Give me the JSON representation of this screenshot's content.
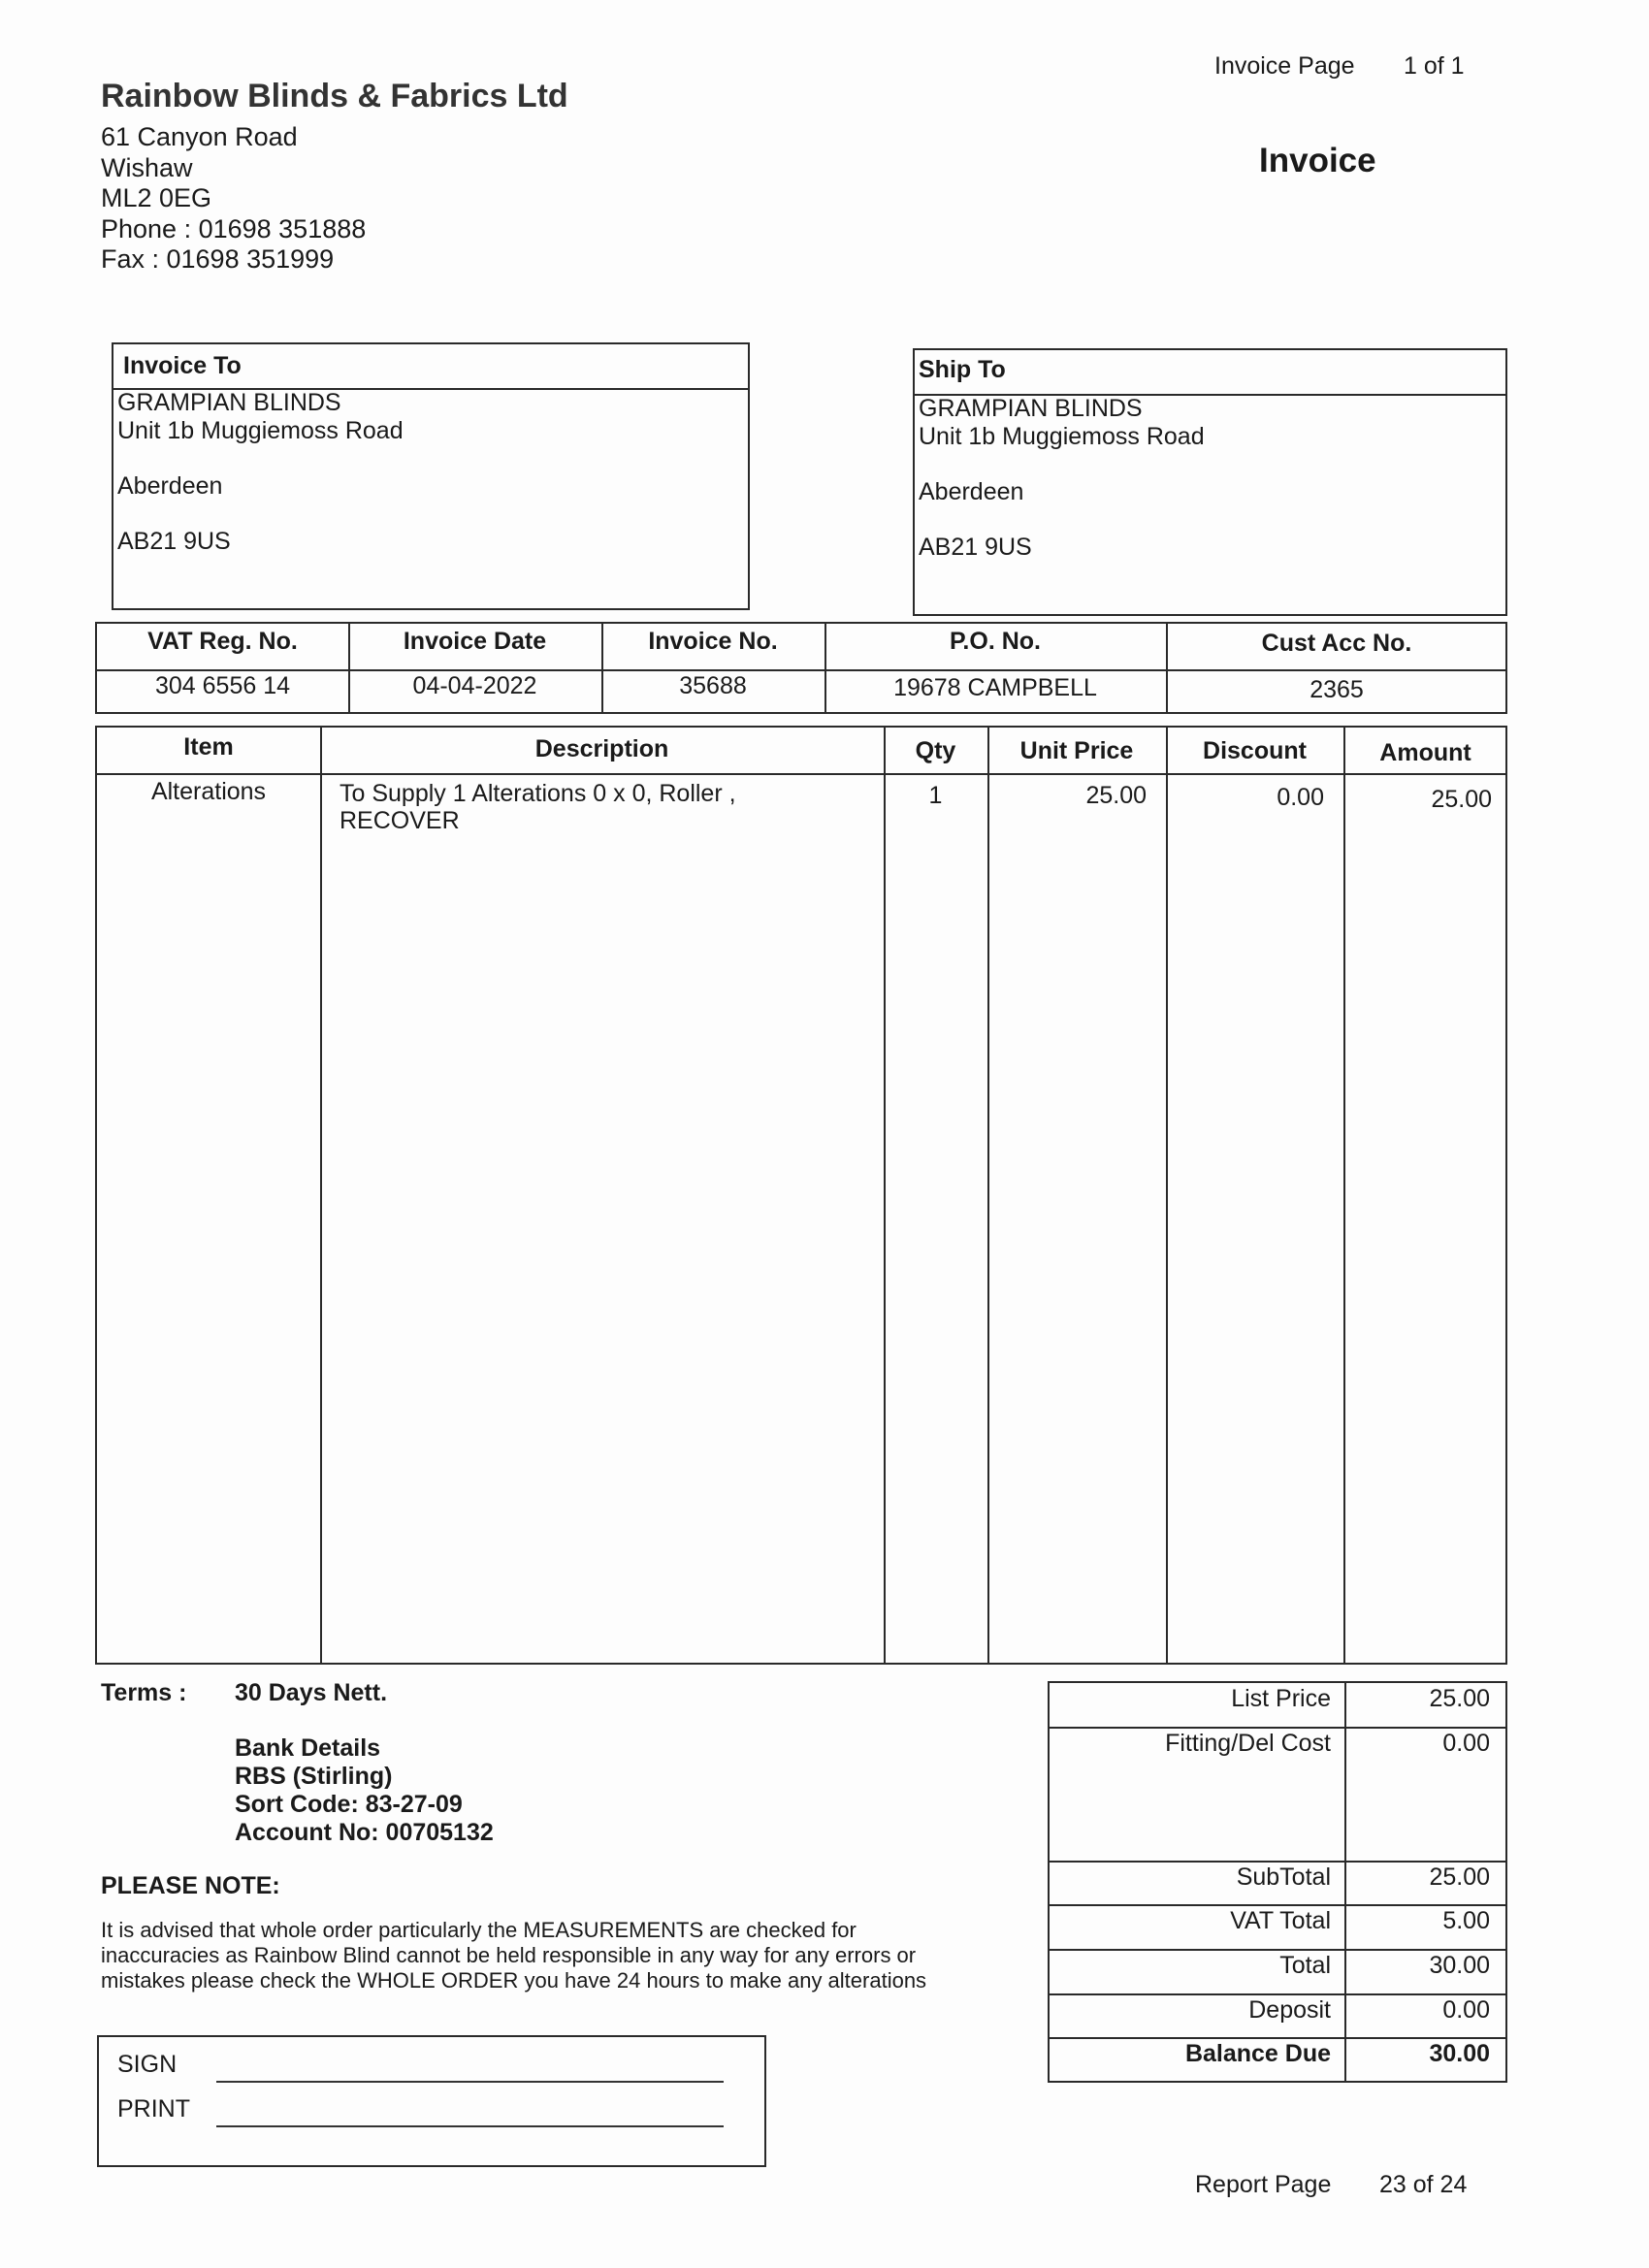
{
  "header": {
    "page_label": "Invoice  Page",
    "page_value": "1 of 1",
    "doc_title": "Invoice"
  },
  "company": {
    "name": "Rainbow Blinds & Fabrics Ltd",
    "address": [
      "61 Canyon Road",
      "Wishaw",
      "ML2 0EG"
    ],
    "phone": "Phone : 01698 351888",
    "fax": "Fax : 01698 351999"
  },
  "invoice_to": {
    "title": "Invoice To",
    "lines": [
      "GRAMPIAN BLINDS",
      "Unit 1b Muggiemoss Road",
      "",
      "Aberdeen",
      "",
      "AB21 9US"
    ]
  },
  "ship_to": {
    "title": "Ship To",
    "lines": [
      "GRAMPIAN BLINDS",
      "Unit 1b Muggiemoss Road",
      "",
      "Aberdeen",
      "",
      "AB21 9US"
    ]
  },
  "info": {
    "headers": [
      "VAT Reg. No.",
      "Invoice Date",
      "Invoice No.",
      "P.O. No.",
      "Cust Acc No."
    ],
    "values": [
      "304 6556 14",
      "04-04-2022",
      "35688",
      "19678 CAMPBELL",
      "2365"
    ]
  },
  "items": {
    "headers": [
      "Item",
      "Description",
      "Qty",
      "Unit Price",
      "Discount",
      "Amount"
    ],
    "rows": [
      {
        "item": "Alterations",
        "description": [
          "To Supply 1 Alterations  0 x 0, Roller ,",
          "RECOVER"
        ],
        "qty": "1",
        "unit_price": "25.00",
        "discount": "0.00",
        "amount": "25.00"
      }
    ]
  },
  "terms": {
    "label": "Terms :",
    "value": "30 Days Nett.",
    "bank": [
      "Bank Details",
      "RBS (Stirling)",
      "Sort Code: 83-27-09",
      "Account No: 00705132"
    ]
  },
  "note": {
    "title": "PLEASE NOTE:",
    "lines": [
      "It is advised that whole order particularly the MEASUREMENTS are checked for",
      "inaccuracies as Rainbow Blind cannot be held responsible in any way for any errors or",
      "mistakes please check the WHOLE ORDER you have 24 hours to make any alterations"
    ]
  },
  "sign": {
    "sign_label": "SIGN",
    "print_label": "PRINT"
  },
  "totals": [
    {
      "label": "List Price",
      "value": "25.00"
    },
    {
      "label": "Fitting/Del Cost",
      "value": "0.00"
    },
    {
      "label": "SubTotal",
      "value": "25.00"
    },
    {
      "label": "VAT Total",
      "value": "5.00"
    },
    {
      "label": "Total",
      "value": "30.00"
    },
    {
      "label": "Deposit",
      "value": "0.00"
    },
    {
      "label": "Balance Due",
      "value": "30.00"
    }
  ],
  "footer": {
    "report_label": "Report Page",
    "report_value": "23 of 24"
  }
}
